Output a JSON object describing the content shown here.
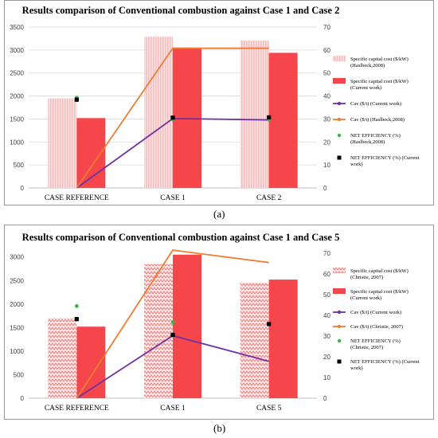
{
  "colors": {
    "capital_lit": "#f6c6c6",
    "capital_cur": "#f5474b",
    "cav_cur": "#7030a0",
    "cav_lit": "#f07c32",
    "eff_lit": "#3cb44b",
    "eff_cur": "#000000",
    "axis_text": "#404040",
    "grid": "#d9d9d9"
  },
  "chart_data": [
    {
      "type": "bar",
      "panel_label": "(a)",
      "title": "Results comparison of Conventional combustion against Case 1 and Case 2",
      "categories": [
        "CASE REFERENCE",
        "CASE 1",
        "CASE 2"
      ],
      "ylim": [
        0,
        3500
      ],
      "y_ticks": [
        "0",
        "500",
        "1000",
        "1500",
        "2000",
        "2500",
        "3000",
        "3500"
      ],
      "y2lim": [
        0,
        70
      ],
      "y2_ticks": [
        "0",
        "10",
        "20",
        "30",
        "40",
        "50",
        "60",
        "70"
      ],
      "grid": true,
      "legend_position": "right",
      "series": [
        {
          "name": "Specific capital cost ($/kW) (Haslbeck,2008)",
          "legend_lines": [
            "Specific capital cost ($/kW)",
            "(Haslbeck,2008)"
          ],
          "kind": "bar",
          "axis": "left",
          "style": "hatch-light",
          "values": [
            1950,
            3290,
            3210
          ]
        },
        {
          "name": "Specific capital cost ($/kW) (Current work)",
          "legend_lines": [
            "Specific capital cost ($/kW)",
            "(Current work)"
          ],
          "kind": "bar",
          "axis": "left",
          "style": "solid",
          "values": [
            1520,
            3050,
            2940
          ]
        },
        {
          "name": "Cav ($/t) (Current work)",
          "legend_lines": [
            "Cav ($/t)  (Current work)"
          ],
          "kind": "line",
          "axis": "right",
          "color_key": "cav_cur",
          "values": [
            0,
            30.2,
            29.6
          ]
        },
        {
          "name": "Cav ($/t) (Haslbeck,2008)",
          "legend_lines": [
            "Cav ($/t)  (Haslbeck,2008)"
          ],
          "kind": "line",
          "axis": "right",
          "color_key": "cav_lit",
          "values": [
            0,
            60.8,
            60.8
          ]
        },
        {
          "name": "NET EFFICIENCY (%) (Haslbeck,2008)",
          "legend_lines": [
            "NET EFFICIENCY (%)",
            "(Haslbeck,2008)"
          ],
          "kind": "point",
          "axis": "right",
          "marker": "circle",
          "color_key": "eff_lit",
          "values": [
            39.3,
            29.8,
            29.7
          ]
        },
        {
          "name": "NET EFFICIENCY (%) (Current work)",
          "legend_lines": [
            "NET EFFICIENCY (%)  (Current",
            "work)"
          ],
          "kind": "point",
          "axis": "right",
          "marker": "square",
          "color_key": "eff_cur",
          "values": [
            38.4,
            30.6,
            30.7
          ]
        }
      ]
    },
    {
      "type": "bar",
      "panel_label": "(b)",
      "title": "Results comparison of Conventional combustion against Case 1 and Case 5",
      "categories": [
        "CASE REFERENCE",
        "CASE 1",
        "CASE 5"
      ],
      "ylim": [
        0,
        3300
      ],
      "y_ticks": [
        "0",
        "500",
        "1000",
        "1500",
        "2000",
        "2500",
        "3000"
      ],
      "y2lim": [
        0,
        75
      ],
      "y2_ticks": [
        "0",
        "10",
        "20",
        "30",
        "40",
        "50",
        "60",
        "70"
      ],
      "grid": false,
      "legend_position": "right",
      "series": [
        {
          "name": "Specific capital cost ($/kW) (Christie, 2007)",
          "legend_lines": [
            "Specific capital cost ($/kW)",
            "(Christie, 2007)"
          ],
          "kind": "bar",
          "axis": "left",
          "style": "zigzag",
          "values": [
            1710,
            2850,
            2460
          ]
        },
        {
          "name": "Specific capital cost ($/kW) (Current work)",
          "legend_lines": [
            "Specific capital cost ($/kW)",
            "(Current work)"
          ],
          "kind": "bar",
          "axis": "left",
          "style": "solid",
          "values": [
            1520,
            3050,
            2520
          ]
        },
        {
          "name": "Cav ($/t) (Current work)",
          "legend_lines": [
            "Cav ($/t)  (Current work)"
          ],
          "kind": "line",
          "axis": "right",
          "color_key": "cav_cur",
          "values": [
            0,
            30.2,
            17.8
          ]
        },
        {
          "name": "Cav ($/t) (Christie, 2007)",
          "legend_lines": [
            "Cav ($/t)  (Christie, 2007)"
          ],
          "kind": "line",
          "axis": "right",
          "color_key": "cav_lit",
          "values": [
            0,
            71.5,
            65.5
          ]
        },
        {
          "name": "NET EFFICIENCY (%) (Christie, 2007)",
          "legend_lines": [
            "NET EFFICIENCY (%)",
            "(Christie, 2007)"
          ],
          "kind": "point",
          "axis": "right",
          "marker": "circle",
          "color_key": "eff_lit",
          "values": [
            44.5,
            36.7,
            null
          ]
        },
        {
          "name": "NET EFFICIENCY (%) (Current work)",
          "legend_lines": [
            "NET EFFICIENCY (%)  (Current",
            "work)"
          ],
          "kind": "point",
          "axis": "right",
          "marker": "square",
          "color_key": "eff_cur",
          "values": [
            38.2,
            30.6,
            35.8
          ]
        }
      ]
    }
  ]
}
